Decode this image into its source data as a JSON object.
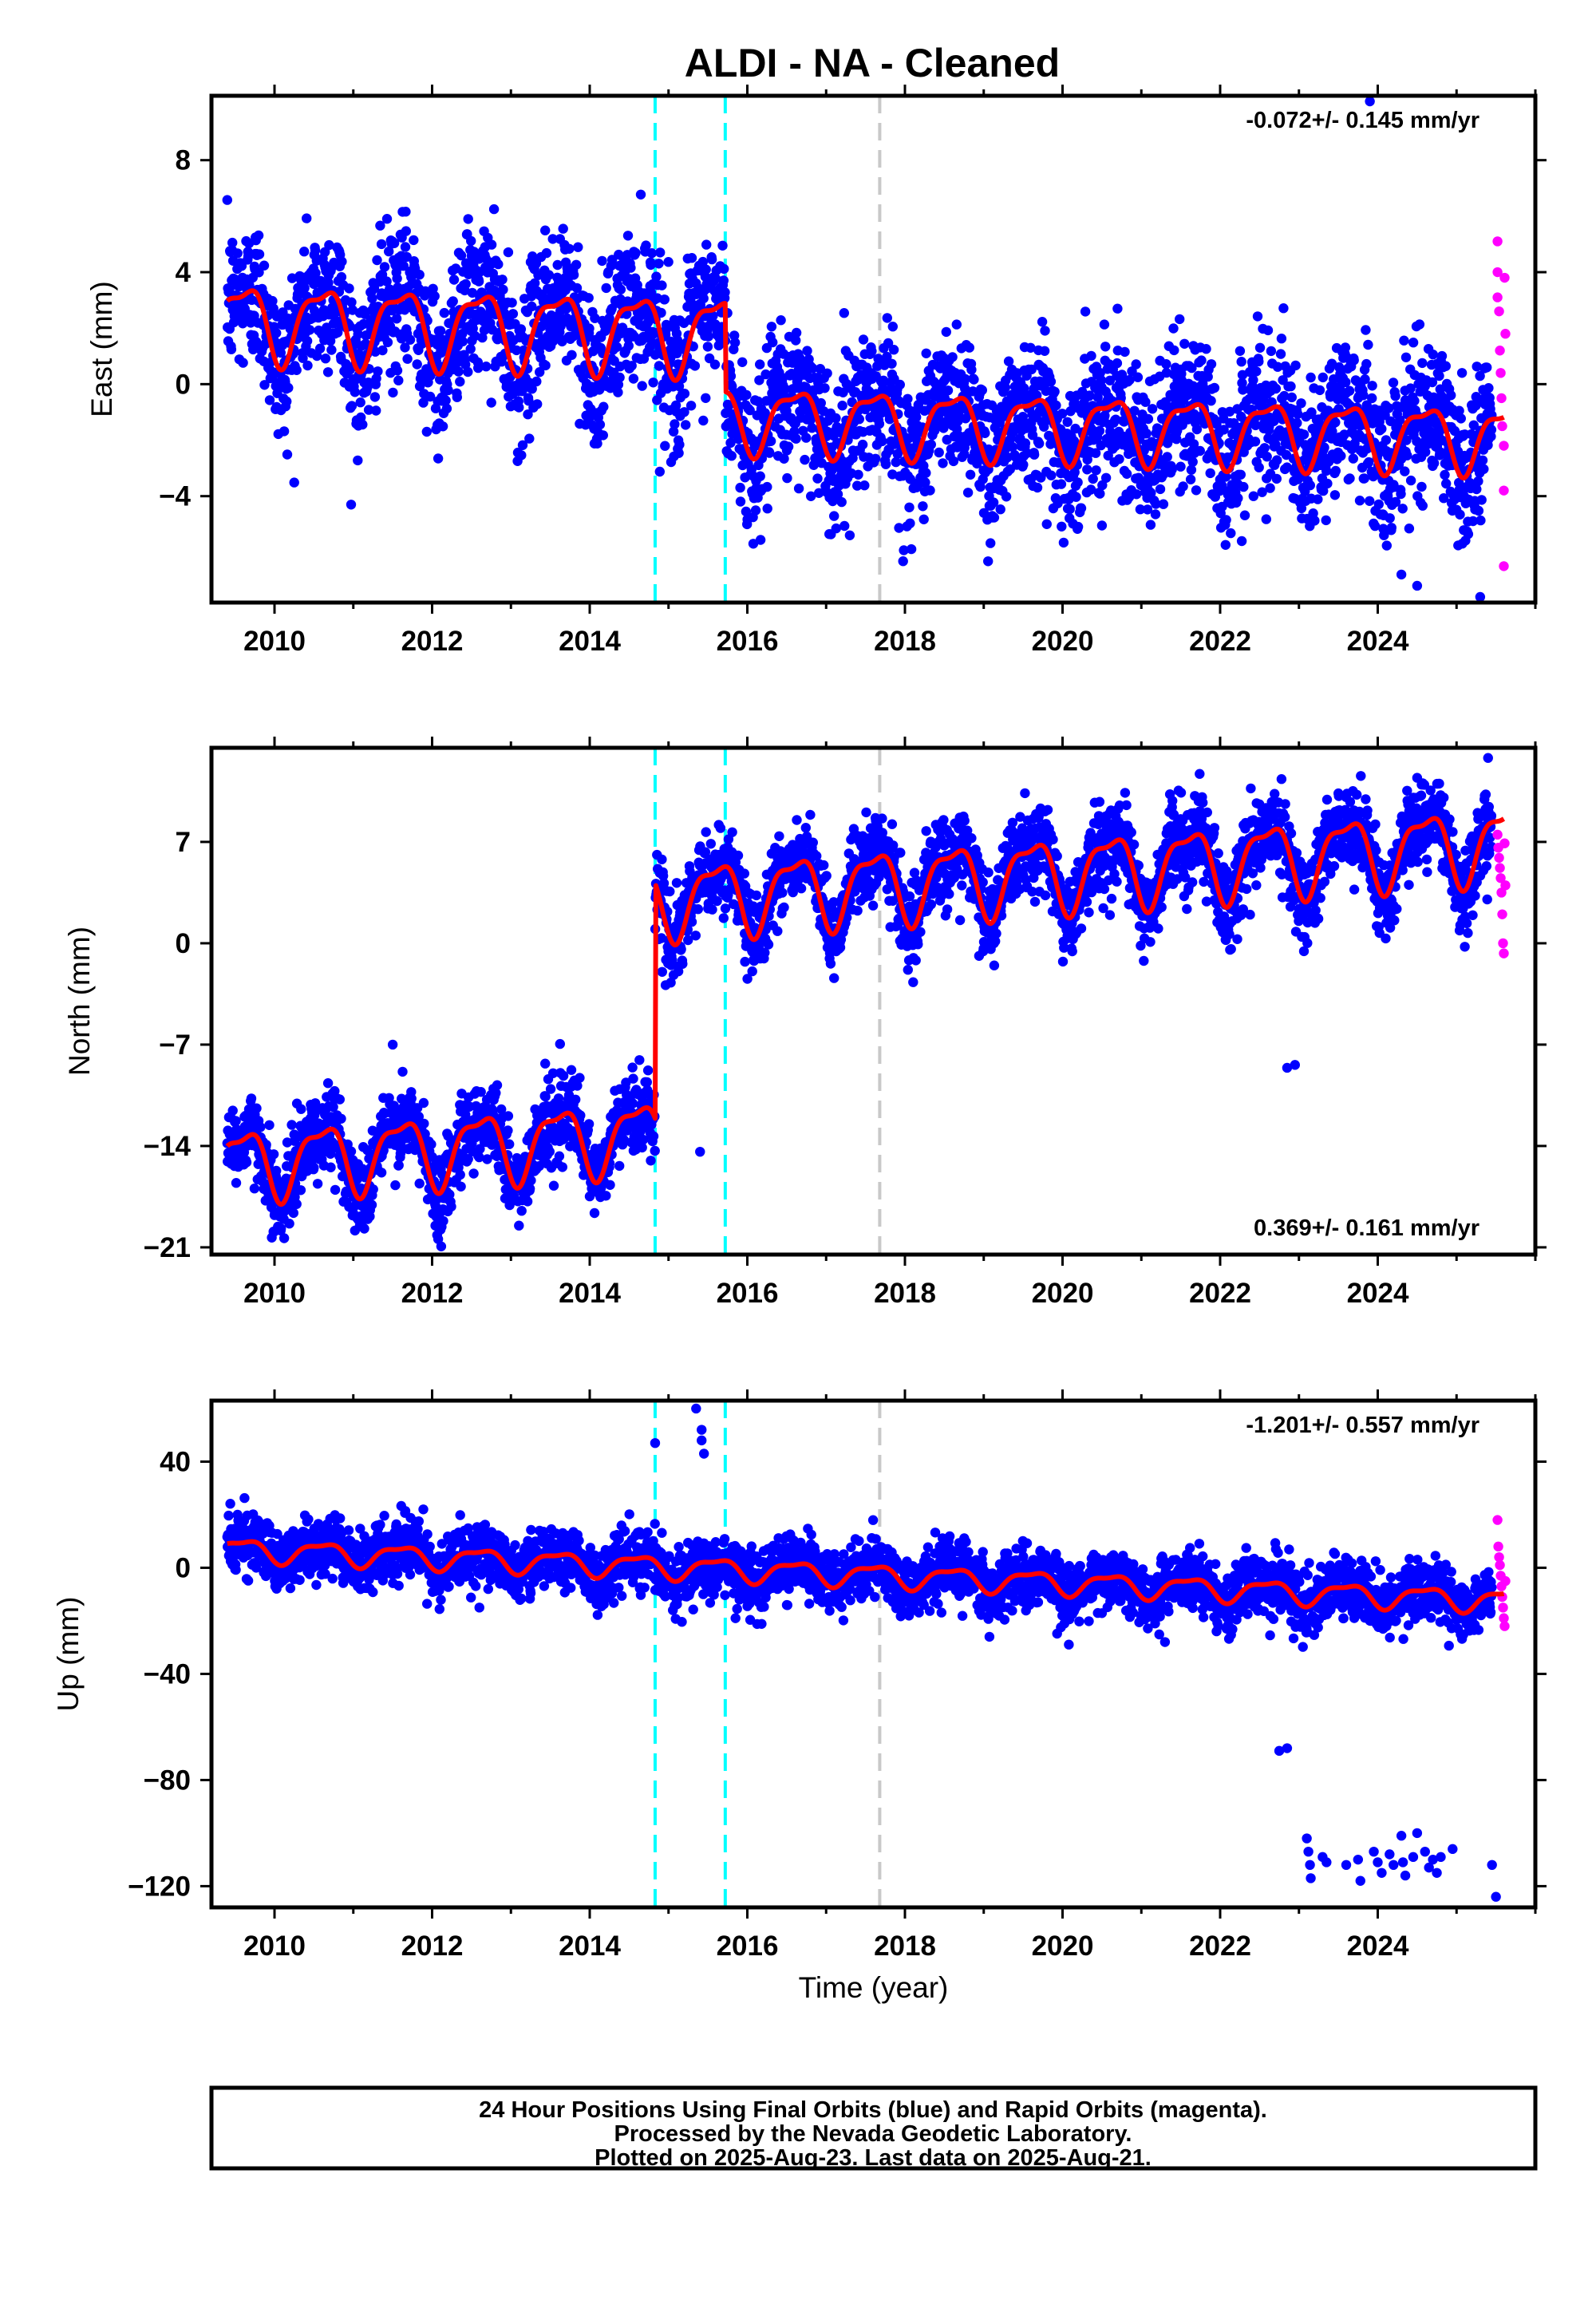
{
  "title": "ALDI  - NA - Cleaned",
  "footer": {
    "line1": "24 Hour Positions Using Final Orbits (blue) and Rapid Orbits (magenta).",
    "line2": "Processed by the Nevada Geodetic Laboratory.",
    "line3": "Plotted on 2025-Aug-23. Last data on 2025-Aug-21."
  },
  "colors": {
    "final_orbits": "#0000ff",
    "rapid_orbits": "#ff00ff",
    "model_fit": "#ff0000",
    "equipment_change": "#00ffff",
    "other_event": "#c8c8c8"
  },
  "chart_data": [
    {
      "type": "scatter",
      "component": "east",
      "ylabel": "East (mm)",
      "xlim": [
        2009.2,
        2026.0
      ],
      "ylim": [
        -7.8,
        10.3
      ],
      "x_ticks": [
        2010,
        2012,
        2014,
        2016,
        2018,
        2020,
        2022,
        2024
      ],
      "y_ticks": [
        -4,
        0,
        4,
        8
      ],
      "x_tick_labels": [
        "2010",
        "2012",
        "2014",
        "2016",
        "2018",
        "2020",
        "2022",
        "2024"
      ],
      "y_tick_labels": [
        "−4",
        "0",
        "4",
        "8"
      ],
      "rate_text": "-0.072+/- 0.145 mm/yr",
      "rate_position": "top-right",
      "events": [
        {
          "x": 2014.83,
          "kind": "equipment",
          "color": "#00ffff"
        },
        {
          "x": 2015.72,
          "kind": "equipment",
          "color": "#00ffff"
        },
        {
          "x": 2017.68,
          "kind": "other",
          "color": "#c8c8c8"
        }
      ],
      "series": [
        {
          "role": "final",
          "color": "#0000ff",
          "x_range": [
            2009.4,
            2025.45
          ],
          "scatter_sd": 1.3,
          "segments": [
            {
              "start": 2009.4,
              "end": 2015.72,
              "offset": 2.3,
              "amplitude": 1.3
            },
            {
              "start": 2015.72,
              "end": 2025.45,
              "offset": -0.7,
              "amplitude": 1.1
            }
          ],
          "trend": -0.075,
          "outliers": [
            [
              2023.9,
              10.1
            ],
            [
              2024.3,
              -6.8
            ],
            [
              2024.5,
              -7.2
            ],
            [
              2025.3,
              -7.6
            ],
            [
              2017.3,
              -5.4
            ],
            [
              2019.8,
              -5.0
            ]
          ]
        },
        {
          "role": "rapid",
          "color": "#ff00ff",
          "points": [
            [
              2025.52,
              5.1
            ],
            [
              2025.52,
              4.0
            ],
            [
              2025.52,
              3.1
            ],
            [
              2025.54,
              2.6
            ],
            [
              2025.55,
              1.2
            ],
            [
              2025.56,
              0.4
            ],
            [
              2025.57,
              -0.5
            ],
            [
              2025.58,
              -1.5
            ],
            [
              2025.6,
              -2.2
            ],
            [
              2025.6,
              -3.8
            ],
            [
              2025.6,
              -6.5
            ],
            [
              2025.61,
              3.8
            ],
            [
              2025.62,
              1.8
            ]
          ]
        }
      ],
      "model": {
        "color": "#ff0000",
        "segments": [
          {
            "start": 2009.4,
            "end": 2015.72,
            "offset": 2.3,
            "amplitude": 1.3
          },
          {
            "start": 2015.72,
            "end": 2025.6,
            "offset": -0.7,
            "amplitude": 1.1
          }
        ],
        "trend": -0.075
      }
    },
    {
      "type": "scatter",
      "component": "north",
      "ylabel": "North (mm)",
      "xlim": [
        2009.2,
        2026.0
      ],
      "ylim": [
        -21.5,
        13.5
      ],
      "x_ticks": [
        2010,
        2012,
        2014,
        2016,
        2018,
        2020,
        2022,
        2024
      ],
      "y_ticks": [
        -21,
        -14,
        -7,
        0,
        7
      ],
      "x_tick_labels": [
        "2010",
        "2012",
        "2014",
        "2016",
        "2018",
        "2020",
        "2022",
        "2024"
      ],
      "y_tick_labels": [
        "−21",
        "−14",
        "−7",
        "0",
        "7"
      ],
      "rate_text": "0.369+/- 0.161 mm/yr",
      "rate_position": "bottom-right",
      "events": [
        {
          "x": 2014.83,
          "kind": "equipment",
          "color": "#00ffff"
        },
        {
          "x": 2015.72,
          "kind": "equipment",
          "color": "#00ffff"
        },
        {
          "x": 2017.68,
          "kind": "other",
          "color": "#c8c8c8"
        }
      ],
      "series": [
        {
          "role": "final",
          "color": "#0000ff",
          "x_range": [
            2009.4,
            2025.45
          ],
          "scatter_sd": 1.4,
          "segments": [
            {
              "start": 2009.4,
              "end": 2014.83,
              "offset": -15.2,
              "amplitude": 2.3
            },
            {
              "start": 2014.83,
              "end": 2025.45,
              "offset": 1.0,
              "amplitude": 2.4
            }
          ],
          "trend": 0.37,
          "outliers": [
            [
              2022.85,
              -8.6
            ],
            [
              2022.95,
              -8.4
            ],
            [
              2015.4,
              -14.4
            ],
            [
              2011.5,
              -7.0
            ],
            [
              2025.4,
              12.8
            ]
          ]
        },
        {
          "role": "rapid",
          "color": "#ff00ff",
          "points": [
            [
              2025.52,
              7.5
            ],
            [
              2025.53,
              6.6
            ],
            [
              2025.54,
              5.9
            ],
            [
              2025.55,
              5.2
            ],
            [
              2025.56,
              4.5
            ],
            [
              2025.57,
              3.5
            ],
            [
              2025.58,
              2.0
            ],
            [
              2025.59,
              0.0
            ],
            [
              2025.6,
              -0.7
            ],
            [
              2025.61,
              6.9
            ],
            [
              2025.62,
              4.0
            ]
          ]
        }
      ],
      "model": {
        "color": "#ff0000",
        "segments": [
          {
            "start": 2009.4,
            "end": 2014.83,
            "offset": -15.2,
            "amplitude": 2.3
          },
          {
            "start": 2014.83,
            "end": 2025.6,
            "offset": 1.0,
            "amplitude": 2.4
          }
        ],
        "trend": 0.37
      }
    },
    {
      "type": "scatter",
      "component": "up",
      "ylabel": "Up (mm)",
      "xlabel": "Time (year)",
      "xlim": [
        2009.2,
        2026.0
      ],
      "ylim": [
        -128,
        63
      ],
      "x_ticks": [
        2010,
        2012,
        2014,
        2016,
        2018,
        2020,
        2022,
        2024
      ],
      "y_ticks": [
        -120,
        -80,
        -40,
        0,
        40
      ],
      "x_tick_labels": [
        "2010",
        "2012",
        "2014",
        "2016",
        "2018",
        "2020",
        "2022",
        "2024"
      ],
      "y_tick_labels": [
        "−120",
        "−80",
        "−40",
        "0",
        "40"
      ],
      "rate_text": "-1.201+/- 0.557 mm/yr",
      "rate_position": "top-right",
      "events": [
        {
          "x": 2014.83,
          "kind": "equipment",
          "color": "#00ffff"
        },
        {
          "x": 2015.72,
          "kind": "equipment",
          "color": "#00ffff"
        },
        {
          "x": 2017.68,
          "kind": "other",
          "color": "#c8c8c8"
        }
      ],
      "series": [
        {
          "role": "final",
          "color": "#0000ff",
          "x_range": [
            2009.4,
            2025.45
          ],
          "scatter_sd": 5.5,
          "segments": [
            {
              "start": 2009.4,
              "end": 2025.45,
              "offset": 7.0,
              "amplitude": 4.0
            }
          ],
          "trend": -1.2,
          "outliers": [
            [
              2014.83,
              47
            ],
            [
              2015.35,
              60
            ],
            [
              2015.42,
              52
            ],
            [
              2015.42,
              48
            ],
            [
              2015.45,
              43
            ],
            [
              2012.6,
              -15
            ],
            [
              2015.85,
              -19
            ],
            [
              2021.3,
              -28
            ],
            [
              2022.75,
              -69
            ],
            [
              2022.85,
              -68
            ],
            [
              2023.1,
              -102
            ],
            [
              2023.12,
              -107
            ],
            [
              2023.14,
              -112
            ],
            [
              2023.15,
              -117
            ],
            [
              2023.3,
              -109
            ],
            [
              2023.35,
              -111
            ],
            [
              2023.6,
              -112
            ],
            [
              2023.75,
              -110
            ],
            [
              2023.78,
              -118
            ],
            [
              2023.95,
              -107
            ],
            [
              2024.0,
              -111
            ],
            [
              2024.05,
              -115
            ],
            [
              2024.15,
              -108
            ],
            [
              2024.2,
              -112
            ],
            [
              2024.3,
              -101
            ],
            [
              2024.32,
              -111
            ],
            [
              2024.35,
              -116
            ],
            [
              2024.45,
              -109
            ],
            [
              2024.5,
              -100
            ],
            [
              2024.6,
              -107
            ],
            [
              2024.65,
              -113
            ],
            [
              2024.7,
              -110
            ],
            [
              2024.75,
              -115
            ],
            [
              2024.8,
              -109
            ],
            [
              2024.95,
              -106
            ],
            [
              2025.45,
              -112
            ],
            [
              2025.5,
              -124
            ]
          ]
        },
        {
          "role": "rapid",
          "color": "#ff00ff",
          "points": [
            [
              2025.52,
              18
            ],
            [
              2025.53,
              8
            ],
            [
              2025.54,
              4
            ],
            [
              2025.55,
              1
            ],
            [
              2025.56,
              -3
            ],
            [
              2025.57,
              -7
            ],
            [
              2025.58,
              -11
            ],
            [
              2025.59,
              -15
            ],
            [
              2025.6,
              -19
            ],
            [
              2025.61,
              -22
            ],
            [
              2025.62,
              -5
            ]
          ]
        }
      ],
      "model": {
        "color": "#ff0000",
        "segments": [
          {
            "start": 2009.4,
            "end": 2014.83,
            "offset": 7.0,
            "amplitude": 4.0
          },
          {
            "start": 2014.83,
            "end": 2015.72,
            "offset": 7.0,
            "amplitude": 4.0
          },
          {
            "start": 2015.72,
            "end": 2017.68,
            "offset": 7.0,
            "amplitude": 4.0
          },
          {
            "start": 2017.68,
            "end": 2025.6,
            "offset": 7.0,
            "amplitude": 4.0
          }
        ],
        "trend": -1.2
      }
    }
  ]
}
